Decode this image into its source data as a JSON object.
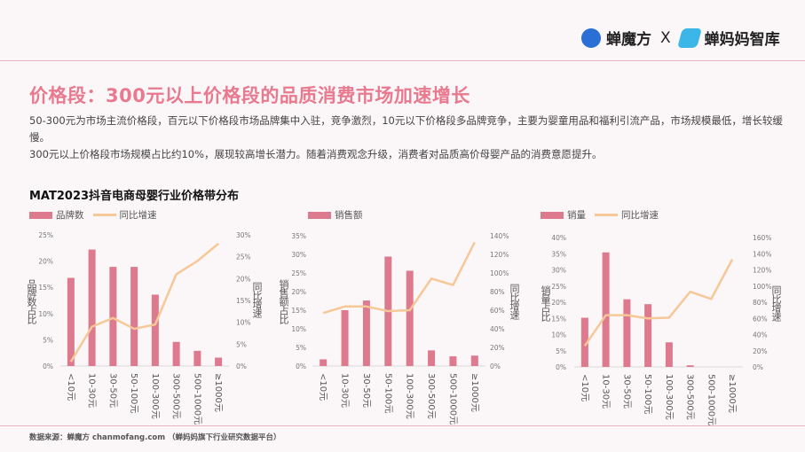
{
  "header": {
    "logo_left": "蝉魔方",
    "separator": "X",
    "logo_right": "蝉妈妈智库"
  },
  "title": "价格段：300元以上价格段的品质消费市场加速增长",
  "paragraphs": [
    "50-300元为市场主流价格段，百元以下价格段市场品牌集中入驻，竞争激烈，10元以下价格段多品牌竞争，主要为婴童用品和福利引流产品，市场规模最低，增长较缓慢。",
    "300元以上价格段市场规模占比约10%，展现较高增长潜力。随着消费观念升级，消费者对品质高价母婴产品的消费意愿提升。"
  ],
  "subtitle": "MAT2023抖音电商母婴行业价格带分布",
  "source": "数据来源：蝉魔方 chanmofang.com （蝉妈妈旗下行业研究数据平台）",
  "colors": {
    "bar": "#dd7a8e",
    "line": "#f6c898",
    "title": "#e8798f"
  },
  "chart_data": [
    {
      "type": "bar+line",
      "legend": [
        "品牌数",
        "同比增速"
      ],
      "ylabel": "品牌数占比",
      "y2label": "同比增速",
      "categories": [
        "<10元",
        "10-30元",
        "30-50元",
        "50-100元",
        "100-300元",
        "300-500元",
        "500-1000元",
        "≥1000元"
      ],
      "yticks": [
        "0%",
        "5%",
        "10%",
        "15%",
        "20%",
        "25%"
      ],
      "ylim": [
        0,
        25
      ],
      "y2ticks": [
        "0%",
        "5%",
        "10%",
        "15%",
        "20%",
        "25%",
        "30%"
      ],
      "y2lim": [
        0,
        30
      ],
      "bars": [
        16.8,
        22.2,
        18.9,
        18.9,
        13.6,
        4.6,
        2.9,
        1.6
      ],
      "line": [
        1,
        9,
        11,
        8.5,
        9.5,
        21,
        24,
        28
      ]
    },
    {
      "type": "bar+line",
      "legend": [
        "销售额"
      ],
      "ylabel": "销售额占比",
      "y2label": "同比增速",
      "categories": [
        "<10元",
        "10-30元",
        "30-50元",
        "50-100元",
        "100-300元",
        "300-500元",
        "500-1000元",
        "≥1000元"
      ],
      "yticks": [
        "0%",
        "5%",
        "10%",
        "15%",
        "20%",
        "25%",
        "30%",
        "35%"
      ],
      "ylim": [
        0,
        35
      ],
      "y2ticks": [
        "0%",
        "20%",
        "40%",
        "60%",
        "80%",
        "100%",
        "120%",
        "140%"
      ],
      "y2lim": [
        0,
        140
      ],
      "bars": [
        1.8,
        15,
        17.6,
        29.4,
        25.6,
        4.2,
        2.6,
        2.8
      ],
      "line": [
        57,
        64,
        64,
        59,
        60,
        94,
        87,
        133
      ]
    },
    {
      "type": "bar+line",
      "legend": [
        "销量",
        "同比增速"
      ],
      "ylabel": "销量占比",
      "y2label": "同比增速",
      "categories": [
        "<10元",
        "10-30元",
        "30-50元",
        "50-100元",
        "100-300元",
        "300-500元",
        "500-1000元",
        "≥1000元"
      ],
      "yticks": [
        "0%",
        "5%",
        "10%",
        "15%",
        "20%",
        "25%",
        "30%",
        "35%",
        "40%"
      ],
      "ylim": [
        0,
        40
      ],
      "y2ticks": [
        "0%",
        "20%",
        "40%",
        "60%",
        "80%",
        "100%",
        "120%",
        "140%",
        "160%"
      ],
      "y2lim": [
        0,
        160
      ],
      "bars": [
        15.2,
        35.4,
        20.9,
        19.4,
        7.6,
        0.5,
        0,
        0
      ],
      "line": [
        26,
        64,
        64,
        60,
        61,
        93,
        84,
        133
      ]
    }
  ]
}
